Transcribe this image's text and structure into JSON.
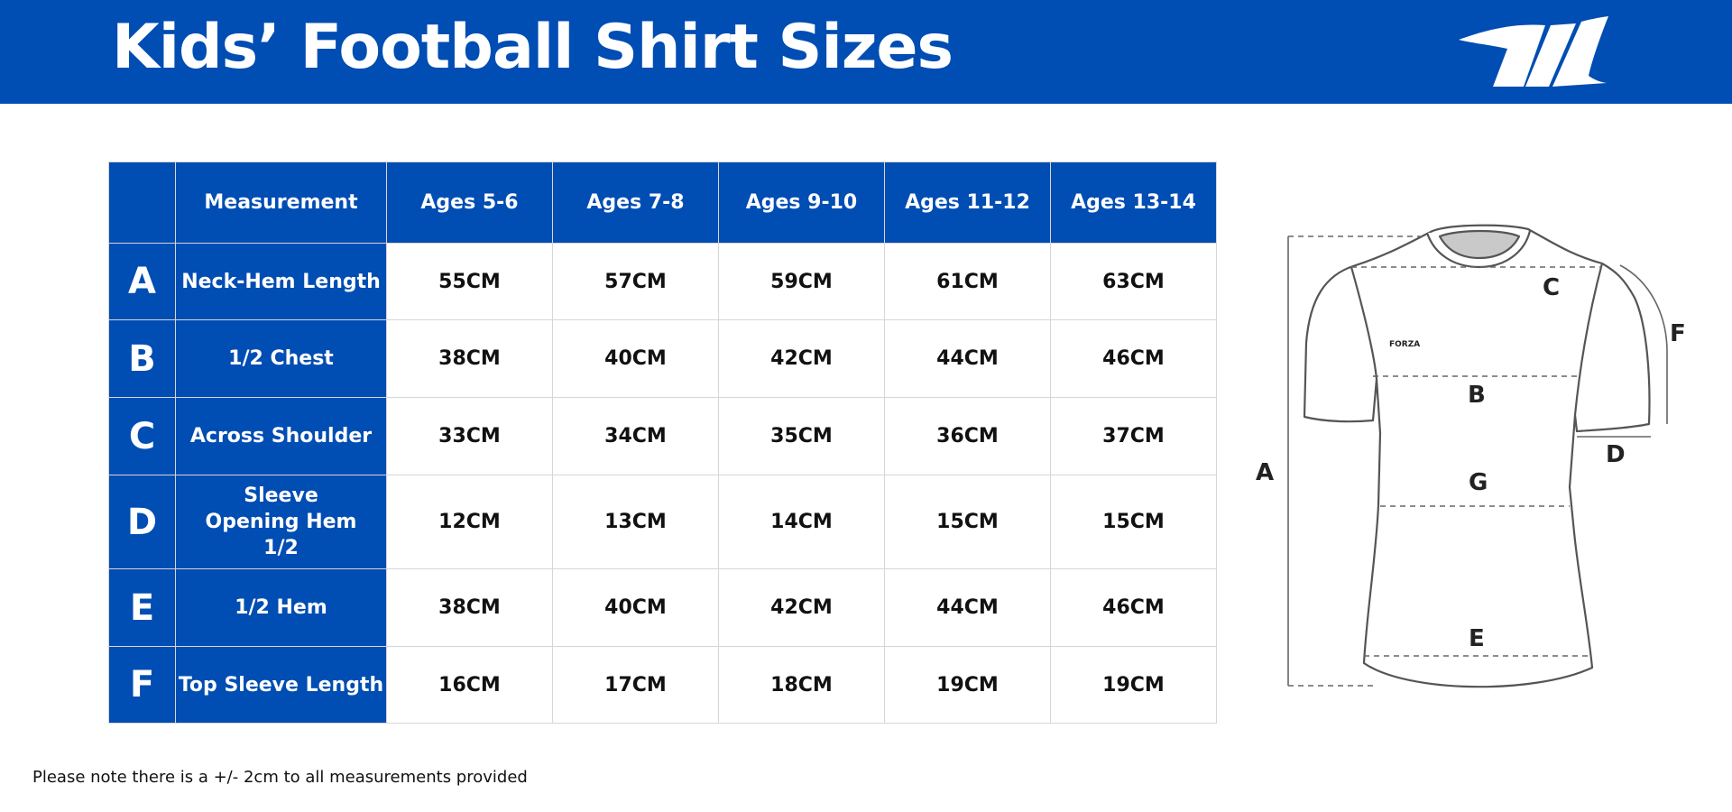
{
  "header": {
    "title": "Kids’ Football Shirt Sizes",
    "logo_icon": "brand-logo-icon"
  },
  "table": {
    "columns": [
      "",
      "Measurement",
      "Ages 5-6",
      "Ages 7-8",
      "Ages 9-10",
      "Ages 11-12",
      "Ages 13-14"
    ],
    "rows": [
      {
        "letter": "A",
        "measurement": "Neck-Hem Length",
        "values": [
          "55CM",
          "57CM",
          "59CM",
          "61CM",
          "63CM"
        ]
      },
      {
        "letter": "B",
        "measurement": "1/2 Chest",
        "values": [
          "38CM",
          "40CM",
          "42CM",
          "44CM",
          "46CM"
        ]
      },
      {
        "letter": "C",
        "measurement": "Across Shoulder",
        "values": [
          "33CM",
          "34CM",
          "35CM",
          "36CM",
          "37CM"
        ]
      },
      {
        "letter": "D",
        "measurement": "Sleeve Opening Hem 1/2",
        "values": [
          "12CM",
          "13CM",
          "14CM",
          "15CM",
          "15CM"
        ]
      },
      {
        "letter": "E",
        "measurement": "1/2 Hem",
        "values": [
          "38CM",
          "40CM",
          "42CM",
          "44CM",
          "46CM"
        ]
      },
      {
        "letter": "F",
        "measurement": "Top Sleeve Length",
        "values": [
          "16CM",
          "17CM",
          "18CM",
          "19CM",
          "19CM"
        ]
      }
    ]
  },
  "diagram": {
    "brand_text": "FORZA",
    "labels": {
      "A": "A",
      "B": "B",
      "C": "C",
      "D": "D",
      "E": "E",
      "F": "F",
      "G": "G"
    }
  },
  "note": "Please note there is a +/- 2cm to all measurements provided",
  "colors": {
    "brand_blue": "#004db3",
    "cell_border": "#d6d6d6"
  }
}
